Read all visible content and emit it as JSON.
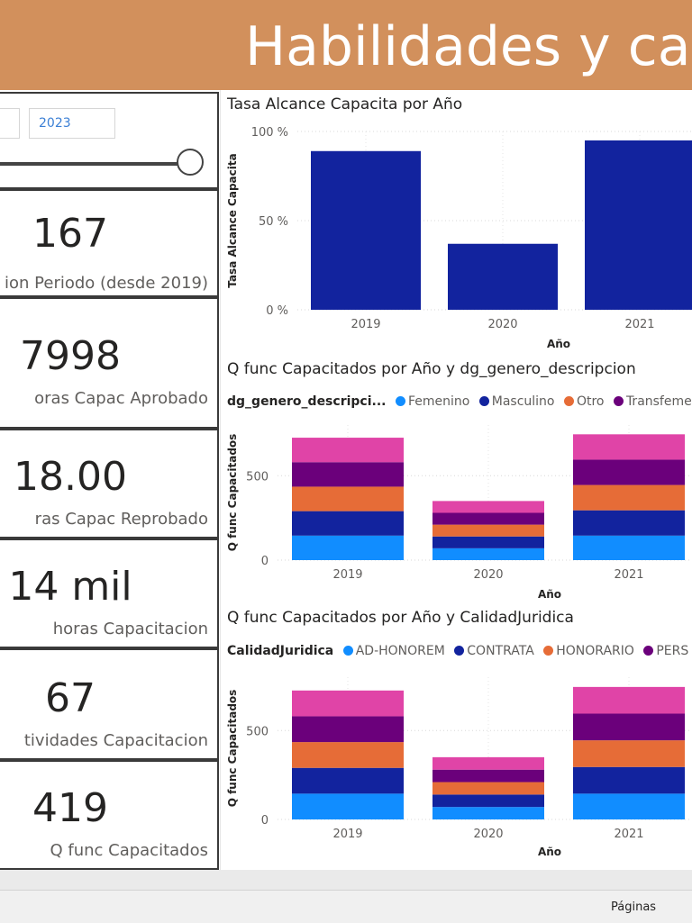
{
  "banner": {
    "title": "Habilidades y ca"
  },
  "slicer": {
    "value_end": "2023",
    "slider_position": 1.0
  },
  "kpis": [
    {
      "value": "167",
      "label": "ion Periodo (desde 2019)"
    },
    {
      "value": "7998",
      "label": "oras Capac Aprobado"
    },
    {
      "value": "18.00",
      "label": "ras Capac Reprobado"
    },
    {
      "value": "14 mil",
      "label": "horas Capacitacion"
    },
    {
      "value": "67",
      "label": "tividades Capacitacion"
    },
    {
      "value": "419",
      "label": "Q func Capacitados"
    }
  ],
  "footer": {
    "pages_label": "Páginas"
  },
  "colors": {
    "banner": "#d2905c",
    "series": [
      "#118dff",
      "#12239e",
      "#e66c37",
      "#6b007b",
      "#e044a7"
    ]
  },
  "chart_data": [
    {
      "type": "bar",
      "title": "Tasa Alcance Capacita por Año",
      "xlabel": "Año",
      "ylabel": "Tasa Alcance Capacita",
      "categories": [
        "2019",
        "2020",
        "2021"
      ],
      "values": [
        89,
        37,
        95
      ],
      "ylim": [
        0,
        100
      ],
      "yticks": [
        "0 %",
        "50 %",
        "100 %"
      ],
      "grid": true
    },
    {
      "type": "bar",
      "stacked": true,
      "title": "Q func Capacitados por Año y dg_genero_descripcion",
      "xlabel": "Año",
      "ylabel": "Q func Capacitados",
      "legend_title": "dg_genero_descripci...",
      "categories": [
        "2019",
        "2020",
        "2021"
      ],
      "ylim": [
        0,
        800
      ],
      "yticks": [
        "0",
        "500"
      ],
      "series": [
        {
          "name": "Femenino",
          "values": [
            145,
            70,
            145
          ]
        },
        {
          "name": "Masculino",
          "values": [
            145,
            70,
            150
          ]
        },
        {
          "name": "Otro",
          "values": [
            145,
            70,
            150
          ]
        },
        {
          "name": "Transfemen",
          "values": [
            145,
            70,
            150
          ]
        },
        {
          "name": "",
          "values": [
            145,
            70,
            150
          ]
        }
      ]
    },
    {
      "type": "bar",
      "stacked": true,
      "title": "Q func Capacitados por Año y CalidadJuridica",
      "xlabel": "Año",
      "ylabel": "Q func Capacitados",
      "legend_title": "CalidadJuridica",
      "categories": [
        "2019",
        "2020",
        "2021"
      ],
      "ylim": [
        0,
        800
      ],
      "yticks": [
        "0",
        "500"
      ],
      "series": [
        {
          "name": "AD-HONOREM",
          "values": [
            145,
            70,
            145
          ]
        },
        {
          "name": "CONTRATA",
          "values": [
            145,
            70,
            150
          ]
        },
        {
          "name": "HONORARIO",
          "values": [
            145,
            70,
            150
          ]
        },
        {
          "name": "PERS",
          "values": [
            145,
            70,
            150
          ]
        },
        {
          "name": "",
          "values": [
            145,
            70,
            150
          ]
        }
      ]
    }
  ]
}
